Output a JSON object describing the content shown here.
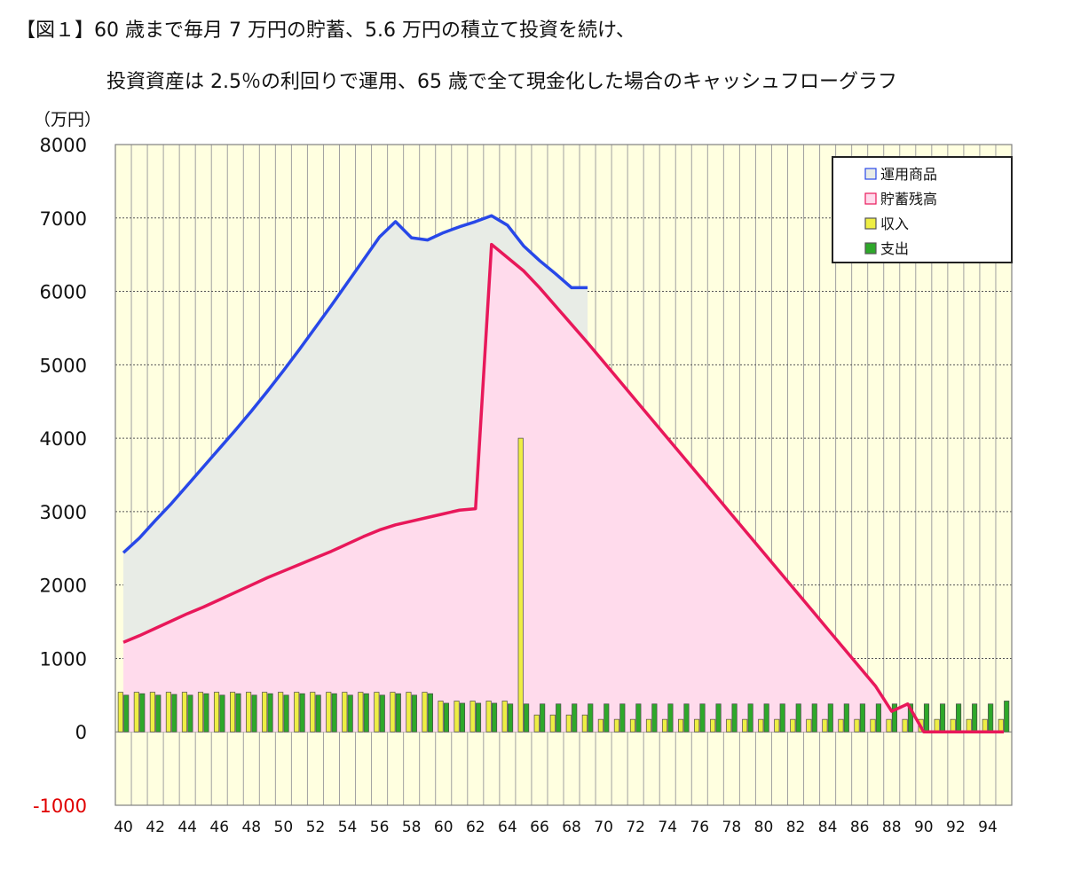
{
  "header": {
    "title_line1": "【図１】60 歳まで毎月 7 万円の貯蓄、5.6 万円の積立て投資を続け、",
    "title_line2": "投資資産は 2.5％の利回りで運用、65 歳で全て現金化した場合のキャッシュフローグラフ"
  },
  "chart_data": {
    "type": "area",
    "y_unit_label": "（万円）",
    "ylim": [
      -1000,
      8000
    ],
    "yticks": [
      8000,
      7000,
      6000,
      5000,
      4000,
      3000,
      2000,
      1000,
      0,
      -1000
    ],
    "negative_tick_color": "#e00000",
    "x": [
      40,
      41,
      42,
      43,
      44,
      45,
      46,
      47,
      48,
      49,
      50,
      51,
      52,
      53,
      54,
      55,
      56,
      57,
      58,
      59,
      60,
      61,
      62,
      63,
      64,
      65,
      66,
      67,
      68,
      69,
      70,
      71,
      72,
      73,
      74,
      75,
      76,
      77,
      78,
      79,
      80,
      81,
      82,
      83,
      84,
      85,
      86,
      87,
      88,
      89,
      90,
      91,
      92,
      93,
      94,
      95
    ],
    "xticks": [
      40,
      42,
      44,
      46,
      48,
      50,
      52,
      54,
      56,
      58,
      60,
      62,
      64,
      66,
      68,
      70,
      72,
      74,
      76,
      78,
      80,
      82,
      84,
      86,
      88,
      90,
      92,
      94
    ],
    "grid": true,
    "plot_background": "#ffffe0",
    "legend_position": "top-right",
    "series": [
      {
        "name": "運用商品",
        "kind": "line",
        "color": "#2848e8",
        "fill": "#e8ece6",
        "x": [
          40,
          41,
          42,
          43,
          44,
          45,
          46,
          47,
          48,
          49,
          50,
          51,
          52,
          53,
          54,
          55,
          56,
          57,
          58,
          59,
          60,
          61,
          62,
          63,
          64,
          65,
          66,
          67,
          68,
          69
        ],
        "values": [
          2440,
          2640,
          2880,
          3110,
          3360,
          3610,
          3860,
          4110,
          4370,
          4640,
          4920,
          5210,
          5510,
          5810,
          6120,
          6430,
          6740,
          6950,
          6730,
          6700,
          6800,
          6880,
          6950,
          7030,
          6900,
          6620,
          6420,
          6240,
          6050,
          6050
        ]
      },
      {
        "name": "貯蓄残高",
        "kind": "line",
        "color": "#e8185a",
        "fill": "#ffdbec",
        "x": [
          40,
          41,
          42,
          43,
          44,
          45,
          46,
          47,
          48,
          49,
          50,
          51,
          52,
          53,
          54,
          55,
          56,
          57,
          58,
          59,
          60,
          61,
          62,
          63,
          64,
          65,
          66,
          67,
          68,
          69,
          70,
          71,
          72,
          73,
          74,
          75,
          76,
          77,
          78,
          79,
          80,
          81,
          82,
          83,
          84,
          85,
          86,
          87,
          88,
          89,
          90,
          91,
          92,
          93,
          94,
          95
        ],
        "values": [
          1220,
          1310,
          1410,
          1510,
          1610,
          1700,
          1800,
          1900,
          2000,
          2100,
          2190,
          2280,
          2370,
          2460,
          2560,
          2660,
          2750,
          2820,
          2870,
          2920,
          2970,
          3020,
          3040,
          6640,
          6460,
          6280,
          6050,
          5800,
          5550,
          5300,
          5040,
          4780,
          4520,
          4260,
          4000,
          3740,
          3480,
          3220,
          2960,
          2700,
          2440,
          2180,
          1920,
          1660,
          1400,
          1140,
          880,
          620,
          280,
          380,
          0,
          0,
          0,
          0,
          0,
          0
        ]
      },
      {
        "name": "収入",
        "kind": "bar",
        "color": "#eeee44",
        "values": [
          540,
          540,
          540,
          540,
          540,
          540,
          540,
          540,
          540,
          540,
          540,
          540,
          540,
          540,
          540,
          540,
          540,
          540,
          540,
          540,
          420,
          420,
          420,
          420,
          420,
          4000,
          230,
          230,
          230,
          230,
          170,
          170,
          170,
          170,
          170,
          170,
          170,
          170,
          170,
          170,
          170,
          170,
          170,
          170,
          170,
          170,
          170,
          170,
          170,
          170,
          170,
          170,
          170,
          170,
          170,
          170
        ]
      },
      {
        "name": "支出",
        "kind": "bar",
        "color": "#2ea82a",
        "values": [
          500,
          520,
          500,
          510,
          500,
          520,
          500,
          520,
          500,
          520,
          500,
          520,
          500,
          520,
          500,
          520,
          500,
          520,
          500,
          520,
          390,
          390,
          390,
          390,
          380,
          380,
          380,
          380,
          380,
          380,
          380,
          380,
          380,
          380,
          380,
          380,
          380,
          380,
          380,
          380,
          380,
          380,
          380,
          380,
          380,
          380,
          380,
          380,
          380,
          380,
          380,
          380,
          380,
          380,
          380,
          420
        ]
      }
    ]
  }
}
